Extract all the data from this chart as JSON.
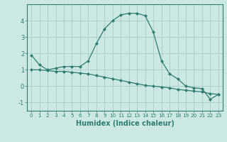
{
  "title": "",
  "xlabel": "Humidex (Indice chaleur)",
  "ylabel": "",
  "background_color": "#cce8e4",
  "grid_color": "#aaccc8",
  "line_color": "#2e7d6e",
  "tick_color": "#2e7d6e",
  "spine_color": "#2e7d6e",
  "line1_x": [
    0,
    1,
    2,
    3,
    4,
    5,
    6,
    7,
    8,
    9,
    10,
    11,
    12,
    13,
    14,
    15,
    16,
    17,
    18,
    19,
    20,
    21,
    22,
    23
  ],
  "line1_y": [
    1.9,
    1.3,
    1.0,
    1.1,
    1.2,
    1.2,
    1.2,
    1.55,
    2.6,
    3.5,
    4.0,
    4.35,
    4.45,
    4.45,
    4.3,
    3.3,
    1.55,
    0.75,
    0.45,
    0.0,
    -0.1,
    -0.15,
    -0.8,
    -0.5
  ],
  "line2_x": [
    0,
    1,
    2,
    3,
    4,
    5,
    6,
    7,
    8,
    9,
    10,
    11,
    12,
    13,
    14,
    15,
    16,
    17,
    18,
    19,
    20,
    21,
    22,
    23
  ],
  "line2_y": [
    1.0,
    1.0,
    0.95,
    0.9,
    0.9,
    0.85,
    0.8,
    0.75,
    0.65,
    0.55,
    0.45,
    0.35,
    0.25,
    0.15,
    0.05,
    0.0,
    -0.05,
    -0.1,
    -0.2,
    -0.25,
    -0.3,
    -0.35,
    -0.45,
    -0.5
  ],
  "xlim": [
    -0.5,
    23.5
  ],
  "ylim": [
    -1.5,
    5.0
  ],
  "yticks": [
    -1,
    0,
    1,
    2,
    3,
    4
  ],
  "xticks": [
    0,
    1,
    2,
    3,
    4,
    5,
    6,
    7,
    8,
    9,
    10,
    11,
    12,
    13,
    14,
    15,
    16,
    17,
    18,
    19,
    20,
    21,
    22,
    23
  ],
  "xlabel_fontsize": 7,
  "tick_fontsize": 5.2,
  "ytick_fontsize": 6.0
}
